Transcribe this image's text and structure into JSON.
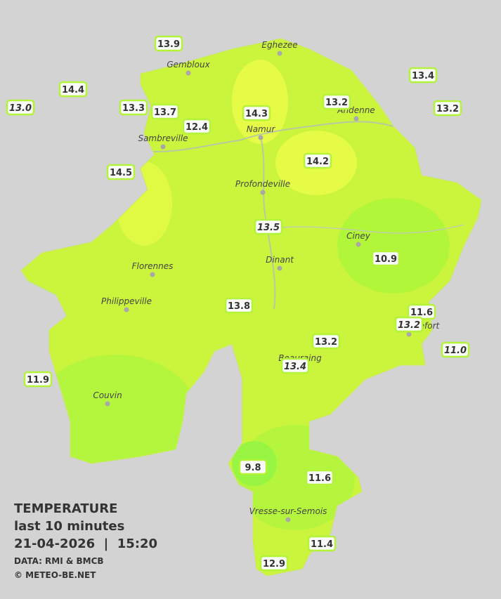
{
  "map": {
    "caption": {
      "title": "TEMPERATURE",
      "subtitle": "last 10 minutes",
      "datetime": "21-04-2026  |  15:20",
      "source": "DATA: RMI & BMCB",
      "credit": "© METEO-BE.NET"
    },
    "towns": [
      "Eghezee",
      "Gembloux",
      "Andenne",
      "Namur",
      "Sambreville",
      "Profondeville",
      "Ciney",
      "Dinant",
      "Florennes",
      "Philippeville",
      "Rochefort",
      "Beauraing",
      "Couvin",
      "Vresse-sur-Semois"
    ],
    "stations": [
      {
        "label": "13.9",
        "italic": false
      },
      {
        "label": "14.4",
        "italic": false
      },
      {
        "label": "13.0",
        "italic": true
      },
      {
        "label": "13.3",
        "italic": false
      },
      {
        "label": "13.7",
        "italic": false
      },
      {
        "label": "12.4",
        "italic": false
      },
      {
        "label": "14.3",
        "italic": false
      },
      {
        "label": "13.2",
        "italic": false
      },
      {
        "label": "13.4",
        "italic": false
      },
      {
        "label": "13.2",
        "italic": false
      },
      {
        "label": "14.2",
        "italic": false
      },
      {
        "label": "14.5",
        "italic": false
      },
      {
        "label": "13.5",
        "italic": true
      },
      {
        "label": "10.9",
        "italic": false
      },
      {
        "label": "13.8",
        "italic": false
      },
      {
        "label": "11.6",
        "italic": false
      },
      {
        "label": "13.2",
        "italic": true
      },
      {
        "label": "13.2",
        "italic": false
      },
      {
        "label": "11.0",
        "italic": true
      },
      {
        "label": "13.4",
        "italic": true
      },
      {
        "label": "11.9",
        "italic": false
      },
      {
        "label": "9.8",
        "italic": false
      },
      {
        "label": "11.6",
        "italic": false
      },
      {
        "label": "11.4",
        "italic": false
      },
      {
        "label": "12.9",
        "italic": false
      }
    ]
  }
}
